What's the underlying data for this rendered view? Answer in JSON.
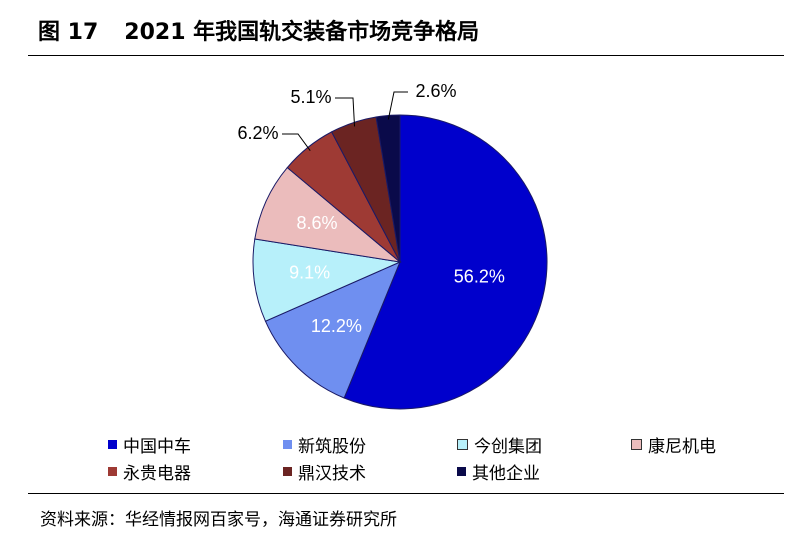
{
  "header": {
    "figure_no": "图 17",
    "title": "2021 年我国轨交装备市场竞争格局"
  },
  "source": "资料来源：华经情报网百家号，海通证券研究所",
  "chart_data": {
    "type": "pie",
    "title": "2021 年我国轨交装备市场竞争格局",
    "unit": "%",
    "legend_position": "bottom",
    "slices": [
      {
        "name": "中国中车",
        "value": 56.2,
        "label": "56.2%",
        "color": "#0000CC"
      },
      {
        "name": "新筑股份",
        "value": 12.2,
        "label": "12.2%",
        "color": "#6F8FF0"
      },
      {
        "name": "今创集团",
        "value": 9.1,
        "label": "9.1%",
        "color": "#B7F0FA"
      },
      {
        "name": "康尼机电",
        "value": 8.6,
        "label": "8.6%",
        "color": "#EBBCBC"
      },
      {
        "name": "永贵电器",
        "value": 6.2,
        "label": "6.2%",
        "color": "#9E3A34"
      },
      {
        "name": "鼎汉技术",
        "value": 5.1,
        "label": "5.1%",
        "color": "#6B2422"
      },
      {
        "name": "其他企业",
        "value": 2.6,
        "label": "2.6%",
        "color": "#0A0A4A"
      }
    ]
  }
}
